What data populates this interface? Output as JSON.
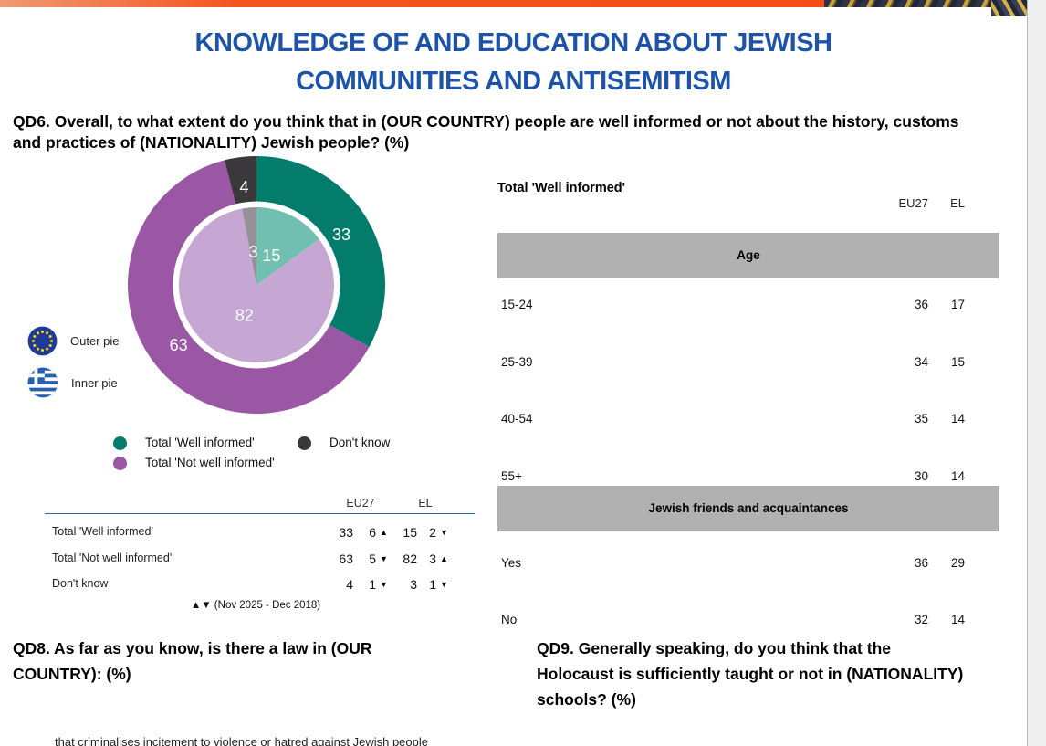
{
  "colors": {
    "title_blue": "#1d54a7",
    "banner_orange": "#f4561f",
    "section_bar_gray": "#b1b1b1",
    "table_rule_blue": "#2f64ad",
    "outer_pie": [
      "#037c6b",
      "#9a57a3",
      "#3b383b"
    ],
    "inner_pie": [
      "#70bfb1",
      "#c6a6d2",
      "#949298"
    ]
  },
  "header": {
    "title_line1": "KNOWLEDGE OF AND EDUCATION ABOUT JEWISH",
    "title_line2": "COMMUNITIES AND ANTISEMITISM"
  },
  "qd6": {
    "question": "QD6. Overall, to what extent do you think that in (OUR COUNTRY) people are well informed or not about the history, customs and practices of (NATIONALITY) Jewish people? (%)",
    "pie_legend": [
      {
        "icon": "eu-flag-icon",
        "label": "Outer pie"
      },
      {
        "icon": "greece-flag-icon",
        "label": "Inner pie"
      }
    ],
    "color_legend": [
      {
        "label": "Total 'Well informed'",
        "color": "#037c6b"
      },
      {
        "label": "Total 'Not well informed'",
        "color": "#9a57a3"
      },
      {
        "label": "Don't know",
        "color": "#3b383b"
      }
    ],
    "chart_data": {
      "type": "pie",
      "note": "nested pie: outer ring = EU27, inner pie = EL (Greece)",
      "categories": [
        "Total 'Well informed'",
        "Total 'Not well informed'",
        "Don't know"
      ],
      "series": [
        {
          "name": "EU27 (outer pie)",
          "values": [
            33,
            63,
            4
          ]
        },
        {
          "name": "EL (inner pie)",
          "values": [
            15,
            82,
            3
          ]
        }
      ],
      "colors": {
        "outer": [
          "#037c6b",
          "#9a57a3",
          "#3b383b"
        ],
        "inner": [
          "#70bfb1",
          "#c6a6d2",
          "#949298"
        ]
      }
    },
    "table": {
      "columns": [
        "EU27",
        "EL"
      ],
      "rows": [
        {
          "label": "Total 'Well informed'",
          "eu27": "33",
          "eu27_change": "6",
          "eu27_dir": "up",
          "el": "15",
          "el_change": "2",
          "el_dir": "down"
        },
        {
          "label": "Total 'Not well informed'",
          "eu27": "63",
          "eu27_change": "5",
          "eu27_dir": "down",
          "el": "82",
          "el_change": "3",
          "el_dir": "up"
        },
        {
          "label": "Don't know",
          "eu27": "4",
          "eu27_change": "1",
          "eu27_dir": "down",
          "el": "3",
          "el_change": "1",
          "el_dir": "down"
        }
      ],
      "footnote": "▲▼ (Nov 2025 - Dec 2018)"
    }
  },
  "demographics": {
    "title": "Total 'Well informed'",
    "columns": [
      "EU27",
      "EL"
    ],
    "sections": [
      {
        "header": "Age",
        "rows": [
          {
            "label": "15-24",
            "eu27": "36",
            "el": "17"
          },
          {
            "label": "25-39",
            "eu27": "34",
            "el": "15"
          },
          {
            "label": "40-54",
            "eu27": "35",
            "el": "14"
          },
          {
            "label": "55+",
            "eu27": "30",
            "el": "14"
          }
        ]
      },
      {
        "header": "Jewish friends and acquaintances",
        "rows": [
          {
            "label": "Yes",
            "eu27": "36",
            "el": "29"
          },
          {
            "label": "No",
            "eu27": "32",
            "el": "14"
          }
        ]
      }
    ]
  },
  "qd8": {
    "question": "QD8. As far as you know, is there a law in (OUR COUNTRY): (%)"
  },
  "qd9": {
    "question": "QD9. Generally speaking, do you think that the Holocaust is sufficiently taught or not in (NATIONALITY) schools? (%)"
  },
  "bottom_partial_text": "that criminalises incitement to violence or hatred against Jewish people"
}
